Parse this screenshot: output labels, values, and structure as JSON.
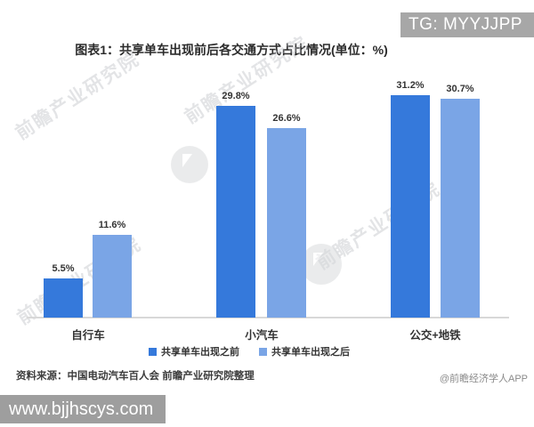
{
  "header": {
    "tg_badge": "TG: MYYJJPP"
  },
  "chart_data": {
    "type": "bar",
    "title": "图表1：共享单车出现前后各交通方式占比情况(单位：%)",
    "categories": [
      "自行车",
      "小汽车",
      "公交+地铁"
    ],
    "series": [
      {
        "name": "共享单车出现之前",
        "color": "#3579DB",
        "values": [
          5.5,
          29.8,
          31.2
        ]
      },
      {
        "name": "共享单车出现之后",
        "color": "#7AA5E6",
        "values": [
          11.6,
          26.6,
          30.7
        ]
      }
    ],
    "value_suffix": "%",
    "ylim": [
      0,
      35
    ],
    "grid": false,
    "legend_position": "bottom",
    "data_labels_shown": true
  },
  "footer": {
    "source": "资料来源：中国电动汽车百人会 前瞻产业研究院整理",
    "credit": "@前瞻经济学人APP",
    "site_badge": "www.bjjhscys.com"
  },
  "watermark": {
    "text": "前瞻产业研究院",
    "logo": "qianzhan-circle-logo"
  },
  "colors": {
    "series_before": "#3579DB",
    "series_after": "#7AA5E6",
    "tg_badge_bg": "#A7A7A7",
    "site_badge_bg": "#9E9E9E",
    "axis_line": "#D8D8D8"
  }
}
